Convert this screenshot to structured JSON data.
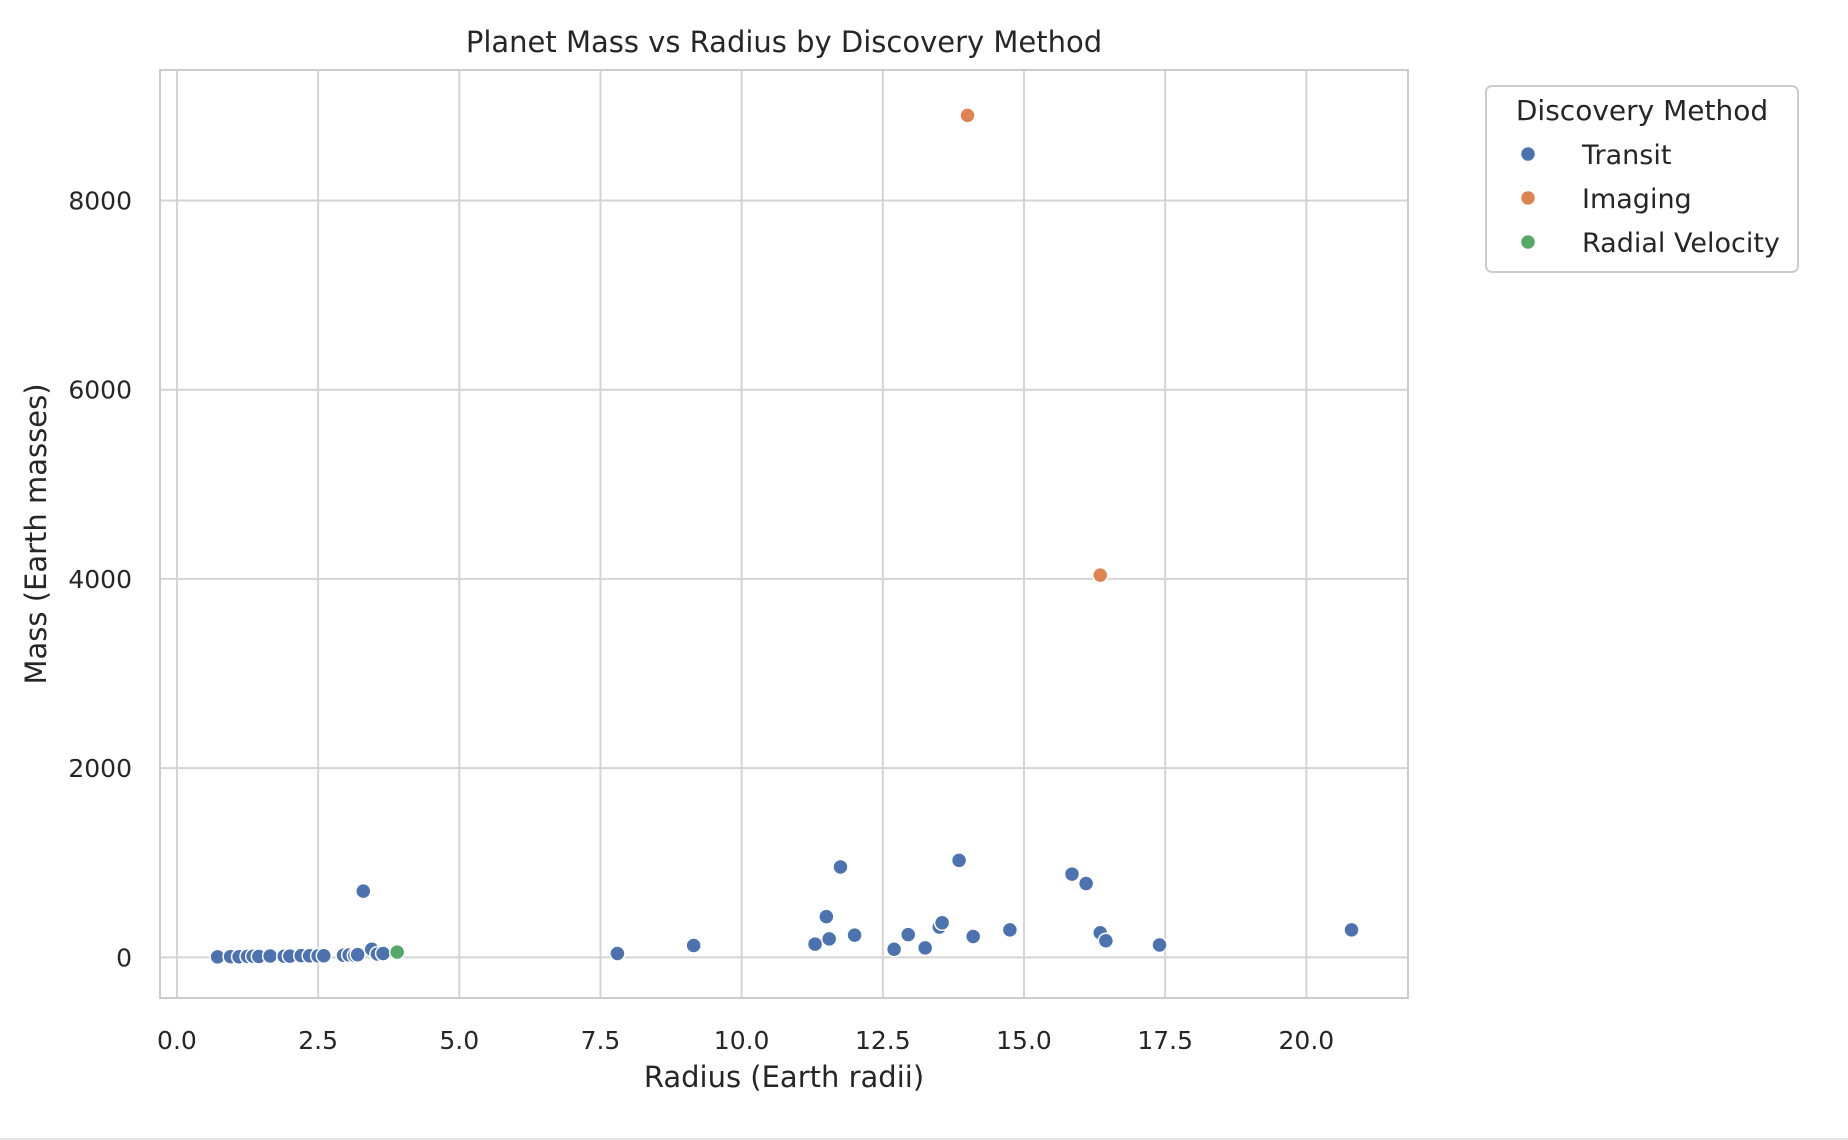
{
  "chart_data": {
    "type": "scatter",
    "title": "Planet Mass vs Radius by Discovery Method",
    "xlabel": "Radius (Earth radii)",
    "ylabel": "Mass (Earth masses)",
    "xlim": [
      -0.3,
      21.8
    ],
    "ylim": [
      -430,
      9380
    ],
    "xticks": [
      0.0,
      2.5,
      5.0,
      7.5,
      10.0,
      12.5,
      15.0,
      17.5,
      20.0
    ],
    "xtick_labels": [
      "0.0",
      "2.5",
      "5.0",
      "7.5",
      "10.0",
      "12.5",
      "15.0",
      "17.5",
      "20.0"
    ],
    "yticks": [
      0,
      2000,
      4000,
      6000,
      8000
    ],
    "ytick_labels": [
      "0",
      "2000",
      "4000",
      "6000",
      "8000"
    ],
    "grid": true,
    "legend": {
      "title": "Discovery Method",
      "placement": "outside-top-right"
    },
    "series": [
      {
        "name": "Transit",
        "color": "#4c72b0",
        "points": [
          [
            0.72,
            5
          ],
          [
            0.95,
            8
          ],
          [
            1.1,
            6
          ],
          [
            1.25,
            10
          ],
          [
            1.35,
            12
          ],
          [
            1.45,
            9
          ],
          [
            1.65,
            14
          ],
          [
            1.9,
            11
          ],
          [
            2.0,
            13
          ],
          [
            2.2,
            18
          ],
          [
            2.35,
            16
          ],
          [
            2.5,
            15
          ],
          [
            2.6,
            17
          ],
          [
            2.95,
            22
          ],
          [
            3.05,
            25
          ],
          [
            3.15,
            20
          ],
          [
            3.2,
            28
          ],
          [
            3.3,
            700
          ],
          [
            3.45,
            85
          ],
          [
            3.55,
            35
          ],
          [
            3.65,
            40
          ],
          [
            7.8,
            40
          ],
          [
            9.15,
            125
          ],
          [
            11.3,
            140
          ],
          [
            11.5,
            430
          ],
          [
            11.55,
            195
          ],
          [
            11.75,
            955
          ],
          [
            12.0,
            235
          ],
          [
            12.7,
            85
          ],
          [
            12.95,
            240
          ],
          [
            13.25,
            100
          ],
          [
            13.5,
            320
          ],
          [
            13.55,
            365
          ],
          [
            13.85,
            1025
          ],
          [
            14.1,
            220
          ],
          [
            14.75,
            290
          ],
          [
            15.85,
            880
          ],
          [
            16.1,
            780
          ],
          [
            16.35,
            260
          ],
          [
            16.45,
            175
          ],
          [
            17.4,
            130
          ],
          [
            20.8,
            290
          ]
        ]
      },
      {
        "name": "Imaging",
        "color": "#dd8452",
        "points": [
          [
            14.0,
            8900
          ],
          [
            16.35,
            4040
          ]
        ]
      },
      {
        "name": "Radial Velocity",
        "color": "#55a868",
        "points": [
          [
            3.9,
            55
          ]
        ]
      }
    ]
  }
}
